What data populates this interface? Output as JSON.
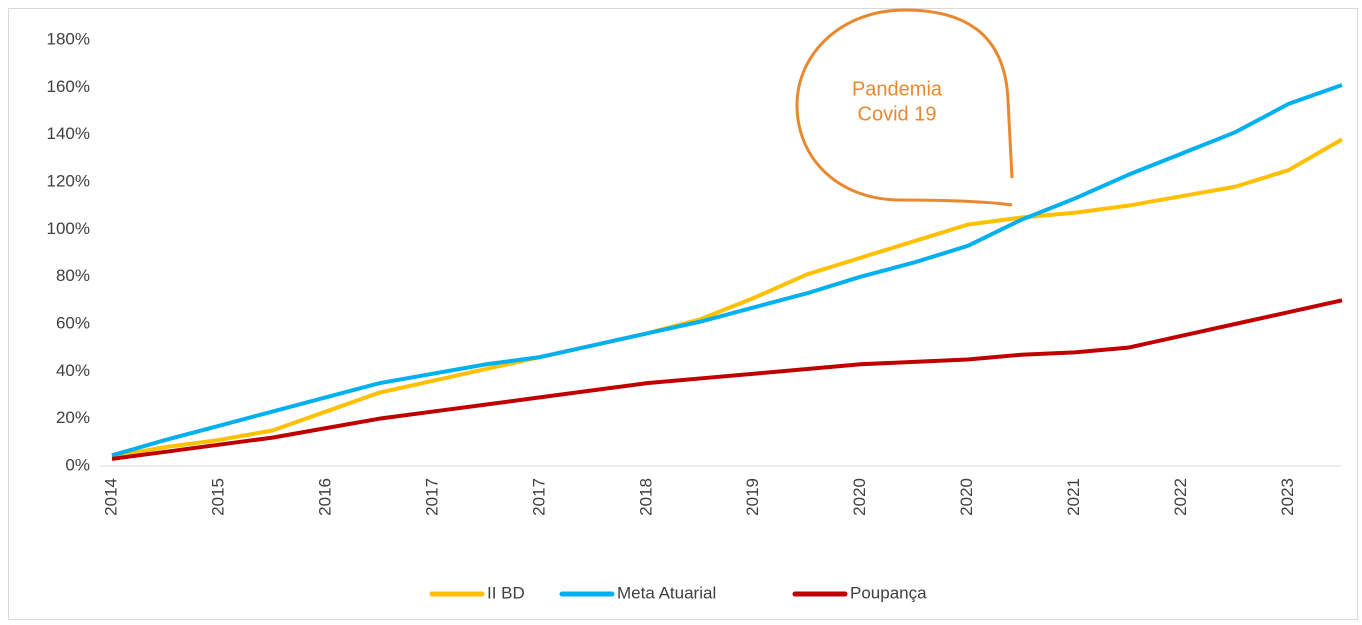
{
  "chart_data": {
    "type": "line",
    "categories": [
      "2014",
      null,
      "2015",
      null,
      "2016",
      null,
      "2017",
      null,
      "2017",
      null,
      "2018",
      null,
      "2019",
      null,
      "2020",
      null,
      "2020",
      null,
      "2021",
      null,
      "2022",
      null,
      "2023",
      null
    ],
    "series": [
      {
        "name": "II BD",
        "color": "#ffc000",
        "values": [
          4,
          8,
          11,
          15,
          23,
          31,
          36,
          41,
          46,
          51,
          56,
          62,
          71,
          81,
          88,
          95,
          102,
          105,
          107,
          110,
          114,
          118,
          125,
          138
        ]
      },
      {
        "name": "Meta Atuarial",
        "color": "#00b0f0",
        "values": [
          4.5,
          11,
          17,
          23,
          29,
          35,
          39,
          43,
          46,
          51,
          56,
          61,
          67,
          73,
          80,
          86,
          93,
          104,
          113,
          123,
          132,
          141,
          153,
          161
        ]
      },
      {
        "name": "Poupança",
        "color": "#c00000",
        "values": [
          3,
          6,
          9,
          12,
          16,
          20,
          23,
          26,
          29,
          32,
          35,
          37,
          39,
          41,
          43,
          44,
          45,
          47,
          48,
          50,
          55,
          60,
          65,
          70
        ]
      }
    ],
    "ylim": [
      0,
      180
    ],
    "yticks": [
      {
        "value": 0,
        "label": "0%"
      },
      {
        "value": 20,
        "label": "20%"
      },
      {
        "value": 40,
        "label": "40%"
      },
      {
        "value": 60,
        "label": "60%"
      },
      {
        "value": 80,
        "label": "80%"
      },
      {
        "value": 100,
        "label": "100%"
      },
      {
        "value": 120,
        "label": "120%"
      },
      {
        "value": 140,
        "label": "140%"
      },
      {
        "value": 160,
        "label": "160%"
      },
      {
        "value": 180,
        "label": "180%"
      }
    ],
    "grid": false,
    "legend": "bottom",
    "annotation": {
      "lines": [
        "Pandemia",
        "Covid 19"
      ],
      "color": "#e8892f"
    }
  }
}
